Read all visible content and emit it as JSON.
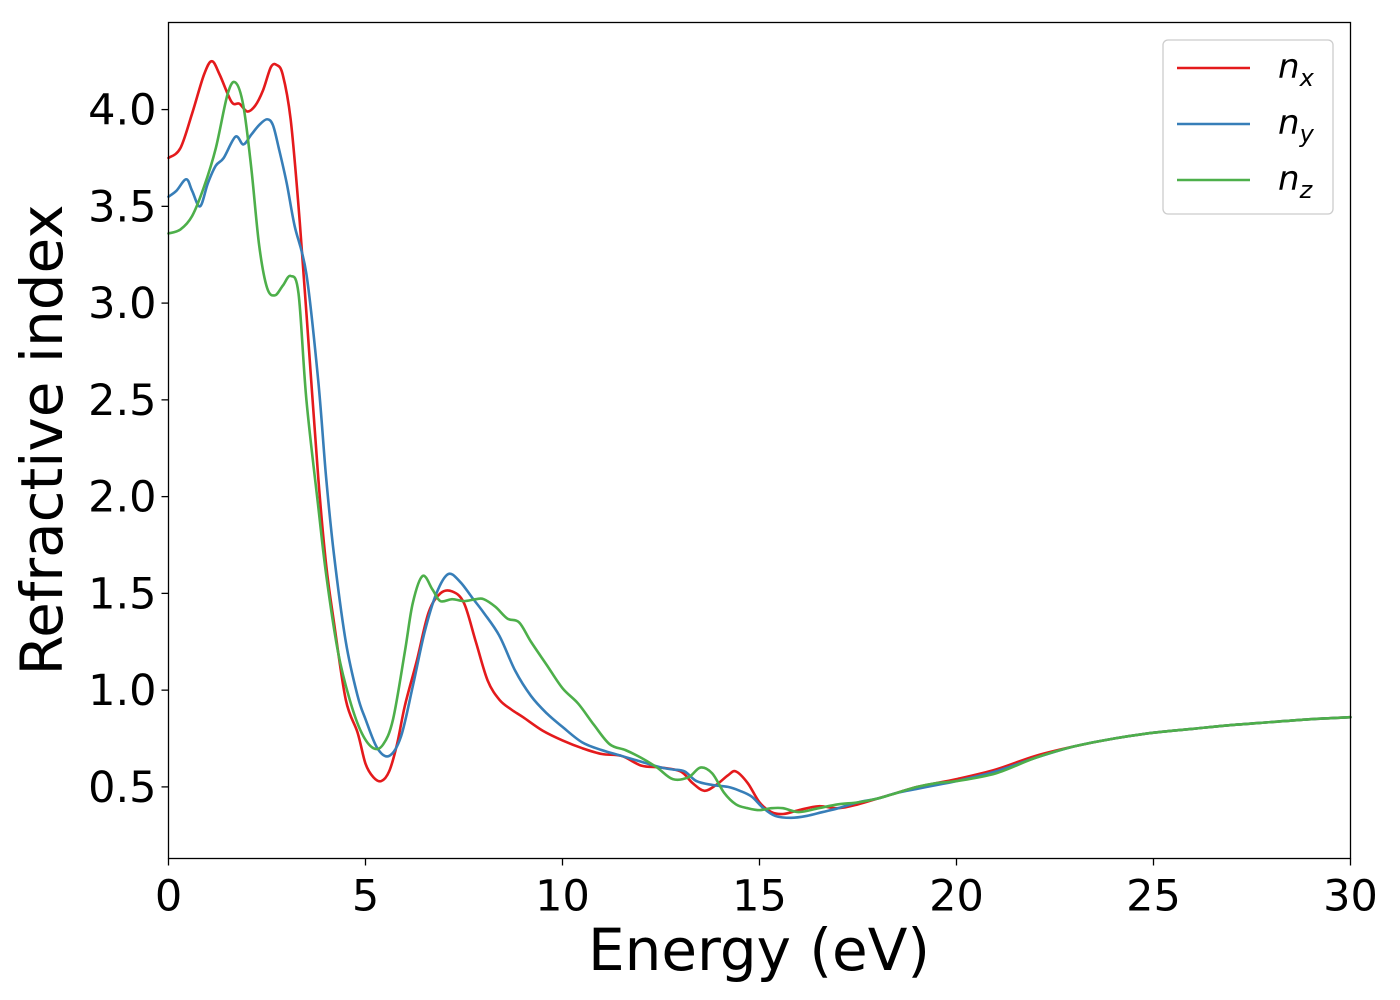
{
  "chart_data": {
    "type": "line",
    "xlabel": "Energy (eV)",
    "ylabel": "Refractive index",
    "xlim": [
      0,
      30
    ],
    "ylim": [
      0.13,
      4.45
    ],
    "xticks": [
      "0",
      "5",
      "10",
      "15",
      "20",
      "25",
      "30"
    ],
    "yticks": [
      "0.5",
      "1.0",
      "1.5",
      "2.0",
      "2.5",
      "3.0",
      "3.5",
      "4.0"
    ],
    "grid": false,
    "legend_position": "top-right",
    "series": [
      {
        "name": "n",
        "subscript": "x",
        "color": "#e41a1c",
        "x": [
          0,
          0.3,
          0.6,
          0.9,
          1.1,
          1.3,
          1.6,
          1.8,
          2.0,
          2.2,
          2.4,
          2.6,
          2.75,
          2.9,
          3.1,
          3.3,
          3.5,
          3.8,
          4.0,
          4.2,
          4.5,
          4.8,
          5.0,
          5.2,
          5.4,
          5.6,
          5.8,
          6.0,
          6.3,
          6.6,
          6.9,
          7.2,
          7.5,
          7.8,
          8.1,
          8.4,
          8.7,
          9.0,
          9.5,
          10.0,
          10.5,
          11.0,
          11.5,
          12.0,
          12.5,
          13.0,
          13.3,
          13.6,
          13.9,
          14.2,
          14.4,
          14.7,
          15.0,
          15.3,
          15.6,
          16.0,
          16.5,
          17.0,
          17.5,
          18.0,
          18.5,
          19.0,
          19.5,
          20.0,
          21.0,
          22.0,
          23.0,
          24.0,
          25.0,
          26.0,
          27.0,
          28.0,
          29.0,
          30.0
        ],
        "y": [
          3.75,
          3.8,
          3.98,
          4.18,
          4.25,
          4.18,
          4.04,
          4.03,
          3.99,
          4.02,
          4.1,
          4.22,
          4.23,
          4.18,
          3.95,
          3.5,
          2.95,
          2.1,
          1.65,
          1.35,
          0.95,
          0.78,
          0.62,
          0.55,
          0.53,
          0.58,
          0.72,
          0.92,
          1.15,
          1.4,
          1.5,
          1.51,
          1.45,
          1.25,
          1.05,
          0.95,
          0.9,
          0.86,
          0.79,
          0.74,
          0.7,
          0.67,
          0.66,
          0.61,
          0.6,
          0.58,
          0.52,
          0.48,
          0.51,
          0.56,
          0.58,
          0.52,
          0.42,
          0.37,
          0.36,
          0.38,
          0.4,
          0.39,
          0.41,
          0.44,
          0.47,
          0.5,
          0.52,
          0.54,
          0.59,
          0.66,
          0.71,
          0.75,
          0.78,
          0.8,
          0.82,
          0.835,
          0.85,
          0.86
        ]
      },
      {
        "name": "n",
        "subscript": "y",
        "color": "#377eb8",
        "x": [
          0,
          0.2,
          0.45,
          0.6,
          0.8,
          1.0,
          1.2,
          1.4,
          1.7,
          1.9,
          2.1,
          2.3,
          2.5,
          2.65,
          2.8,
          3.0,
          3.2,
          3.5,
          3.8,
          4.0,
          4.2,
          4.5,
          4.8,
          5.0,
          5.3,
          5.6,
          5.9,
          6.2,
          6.5,
          6.8,
          7.1,
          7.4,
          7.7,
          8.0,
          8.4,
          8.8,
          9.2,
          9.6,
          10.0,
          10.5,
          11.0,
          11.5,
          12.0,
          12.5,
          12.8,
          13.1,
          13.4,
          13.8,
          14.2,
          14.5,
          14.8,
          15.1,
          15.4,
          15.8,
          16.2,
          16.6,
          17.0,
          17.5,
          18.0,
          18.5,
          19.0,
          19.5,
          20.0,
          21.0,
          22.0,
          23.0,
          24.0,
          25.0,
          26.0,
          27.0,
          28.0,
          29.0,
          30.0
        ],
        "y": [
          3.55,
          3.58,
          3.64,
          3.58,
          3.5,
          3.62,
          3.71,
          3.75,
          3.86,
          3.82,
          3.87,
          3.92,
          3.95,
          3.92,
          3.8,
          3.62,
          3.4,
          3.15,
          2.6,
          2.1,
          1.7,
          1.25,
          0.97,
          0.85,
          0.7,
          0.66,
          0.76,
          1.02,
          1.3,
          1.5,
          1.6,
          1.56,
          1.48,
          1.4,
          1.28,
          1.1,
          0.97,
          0.88,
          0.81,
          0.73,
          0.69,
          0.66,
          0.63,
          0.6,
          0.59,
          0.58,
          0.53,
          0.51,
          0.5,
          0.48,
          0.45,
          0.39,
          0.35,
          0.34,
          0.35,
          0.37,
          0.39,
          0.42,
          0.44,
          0.47,
          0.49,
          0.51,
          0.53,
          0.58,
          0.65,
          0.71,
          0.75,
          0.78,
          0.8,
          0.82,
          0.835,
          0.85,
          0.86
        ]
      },
      {
        "name": "n",
        "subscript": "z",
        "color": "#4daf4a",
        "x": [
          0,
          0.3,
          0.6,
          0.9,
          1.2,
          1.5,
          1.7,
          1.9,
          2.1,
          2.3,
          2.5,
          2.7,
          2.9,
          3.1,
          3.3,
          3.5,
          3.8,
          4.0,
          4.3,
          4.6,
          4.9,
          5.2,
          5.45,
          5.7,
          6.0,
          6.2,
          6.45,
          6.7,
          6.9,
          7.2,
          7.5,
          7.8,
          8.0,
          8.3,
          8.6,
          8.9,
          9.2,
          9.6,
          10.0,
          10.4,
          10.8,
          11.2,
          11.6,
          12.0,
          12.4,
          12.8,
          13.2,
          13.5,
          13.8,
          14.1,
          14.4,
          14.7,
          15.0,
          15.3,
          15.6,
          16.0,
          16.5,
          17.0,
          17.5,
          18.0,
          18.5,
          19.0,
          19.5,
          20.0,
          21.0,
          22.0,
          23.0,
          24.0,
          25.0,
          26.0,
          27.0,
          28.0,
          29.0,
          30.0
        ],
        "y": [
          3.36,
          3.38,
          3.45,
          3.6,
          3.8,
          4.08,
          4.14,
          4.02,
          3.7,
          3.3,
          3.08,
          3.04,
          3.09,
          3.14,
          3.05,
          2.5,
          1.95,
          1.6,
          1.2,
          0.95,
          0.78,
          0.7,
          0.72,
          0.85,
          1.2,
          1.45,
          1.59,
          1.52,
          1.46,
          1.47,
          1.46,
          1.47,
          1.47,
          1.43,
          1.37,
          1.35,
          1.25,
          1.13,
          1.01,
          0.93,
          0.82,
          0.72,
          0.69,
          0.65,
          0.6,
          0.54,
          0.55,
          0.6,
          0.57,
          0.47,
          0.41,
          0.39,
          0.38,
          0.39,
          0.39,
          0.37,
          0.39,
          0.41,
          0.42,
          0.44,
          0.47,
          0.5,
          0.52,
          0.53,
          0.57,
          0.65,
          0.71,
          0.75,
          0.78,
          0.8,
          0.82,
          0.835,
          0.85,
          0.86
        ]
      }
    ]
  }
}
